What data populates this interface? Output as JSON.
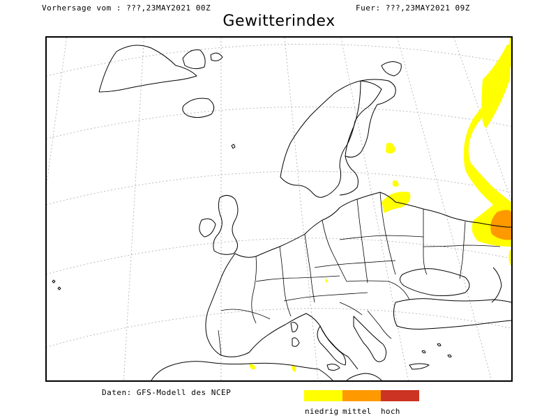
{
  "header": {
    "left": "Vorhersage vom : ???,23MAY2021 00Z",
    "right": "Fuer: ???,23MAY2021 09Z",
    "title": "Gewitterindex"
  },
  "footer": {
    "source": "Daten: GFS-Modell des NCEP"
  },
  "legend": [
    {
      "label": "niedrig",
      "color": "#ffff00"
    },
    {
      "label": "mittel",
      "color": "#ff9900"
    },
    {
      "label": "hoch",
      "color": "#cc3322"
    }
  ],
  "colors": {
    "coast": "#000000",
    "grid": "#aaaaaa",
    "frame": "#000000"
  }
}
